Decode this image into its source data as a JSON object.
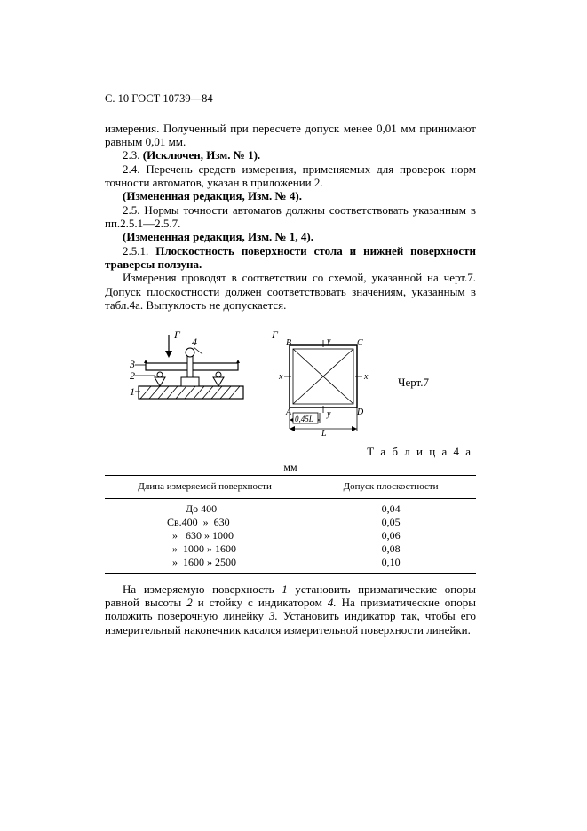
{
  "header": "С. 10 ГОСТ 10739—84",
  "body": {
    "p1": "измерения. Полученный при пересчете допуск менее 0,01 мм принимают равным 0,01 мм.",
    "p2a": "2.3. ",
    "p2b": "(Исключен, Изм. № 1).",
    "p3": "2.4. Перечень средств измерения, применяемых для проверок норм точности автоматов, указан в приложении 2.",
    "p4": "(Измененная редакция, Изм. № 4).",
    "p5": "2.5. Нормы точности автоматов должны соответствовать указанным в пп.2.5.1—2.5.7.",
    "p6": "(Измененная редакция, Изм. № 1, 4).",
    "p7a": "2.5.1. ",
    "p7b": "Плоскостность поверхности стола и нижней поверхности траверсы ползуна.",
    "p8": "Измерения проводят в соответствии со схемой, указанной на черт.7. Допуск плоскостности должен соответствовать значениям, указанным в табл.4а. Выпуклость не допускается."
  },
  "figure": {
    "caption": "Черт.7",
    "labels": {
      "gamma_l": "Г",
      "gamma_r": "Г",
      "n1": "1",
      "n2": "2",
      "n3": "3",
      "n4": "4",
      "A": "A",
      "B": "B",
      "C": "C",
      "D": "D",
      "x1": "x",
      "x2": "x",
      "y1": "y",
      "y2": "y",
      "dim": "0,45L",
      "L": "L"
    },
    "stroke": "#000000",
    "fill": "#ffffff"
  },
  "table": {
    "title": "Т а б л и ц а  4 а",
    "unit": "мм",
    "col1_header": "Длина измеряемой поверхности",
    "col2_header": "Допуск плоскостности",
    "rows": [
      {
        "len": "       До 400",
        "tol": "0,04"
      },
      {
        "len": "Св.400  »  630",
        "tol": "0,05"
      },
      {
        "len": "  »   630 » 1000",
        "tol": "0,06"
      },
      {
        "len": "  »  1000 » 1600",
        "tol": "0,08"
      },
      {
        "len": "  »  1600 » 2500",
        "tol": "0,10"
      }
    ]
  },
  "footer_para_parts": [
    {
      "t": "На измеряемую поверхность ",
      "i": false
    },
    {
      "t": "1",
      "i": true
    },
    {
      "t": " установить призматические опоры равной высоты ",
      "i": false
    },
    {
      "t": "2",
      "i": true
    },
    {
      "t": " и стойку с индикатором ",
      "i": false
    },
    {
      "t": "4.",
      "i": true
    },
    {
      "t": " На призматические опоры положить поверочную линейку ",
      "i": false
    },
    {
      "t": "3.",
      "i": true
    },
    {
      "t": " Установить индикатор так, чтобы его измерительный наконечник касался измерительной поверхности линейки.",
      "i": false
    }
  ]
}
